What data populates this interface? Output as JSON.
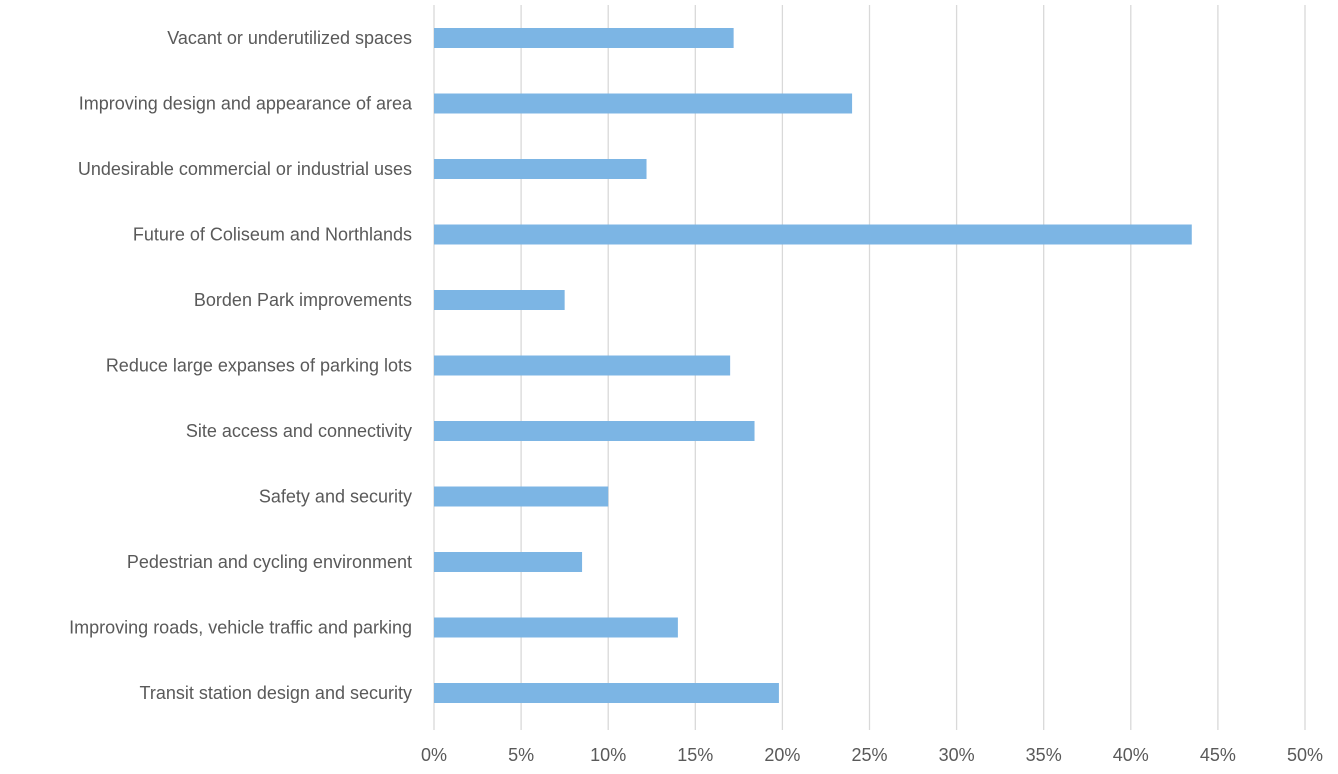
{
  "chart_data": {
    "type": "bar",
    "orientation": "horizontal",
    "title": "",
    "xlabel": "",
    "ylabel": "",
    "xlim": [
      0,
      0.5
    ],
    "xticks": [
      0,
      0.05,
      0.1,
      0.15,
      0.2,
      0.25,
      0.3,
      0.35,
      0.4,
      0.45,
      0.5
    ],
    "xtick_labels": [
      "0%",
      "5%",
      "10%",
      "15%",
      "20%",
      "25%",
      "30%",
      "35%",
      "40%",
      "45%",
      "50%"
    ],
    "grid": true,
    "legend": "none",
    "bar_color": "#7CB5E4",
    "grid_color": "#D9D9D9",
    "text_color": "#595959",
    "categories": [
      "Vacant or underutilized spaces",
      "Improving design and appearance of area",
      "Undesirable commercial or industrial uses",
      "Future of Coliseum and Northlands",
      "Borden Park improvements",
      "Reduce large expanses of parking lots",
      "Site access and connectivity",
      "Safety and security",
      "Pedestrian and cycling environment",
      "Improving roads, vehicle traffic and parking",
      "Transit station design and security"
    ],
    "values": [
      0.172,
      0.24,
      0.122,
      0.435,
      0.075,
      0.17,
      0.184,
      0.1,
      0.085,
      0.14,
      0.198
    ]
  }
}
